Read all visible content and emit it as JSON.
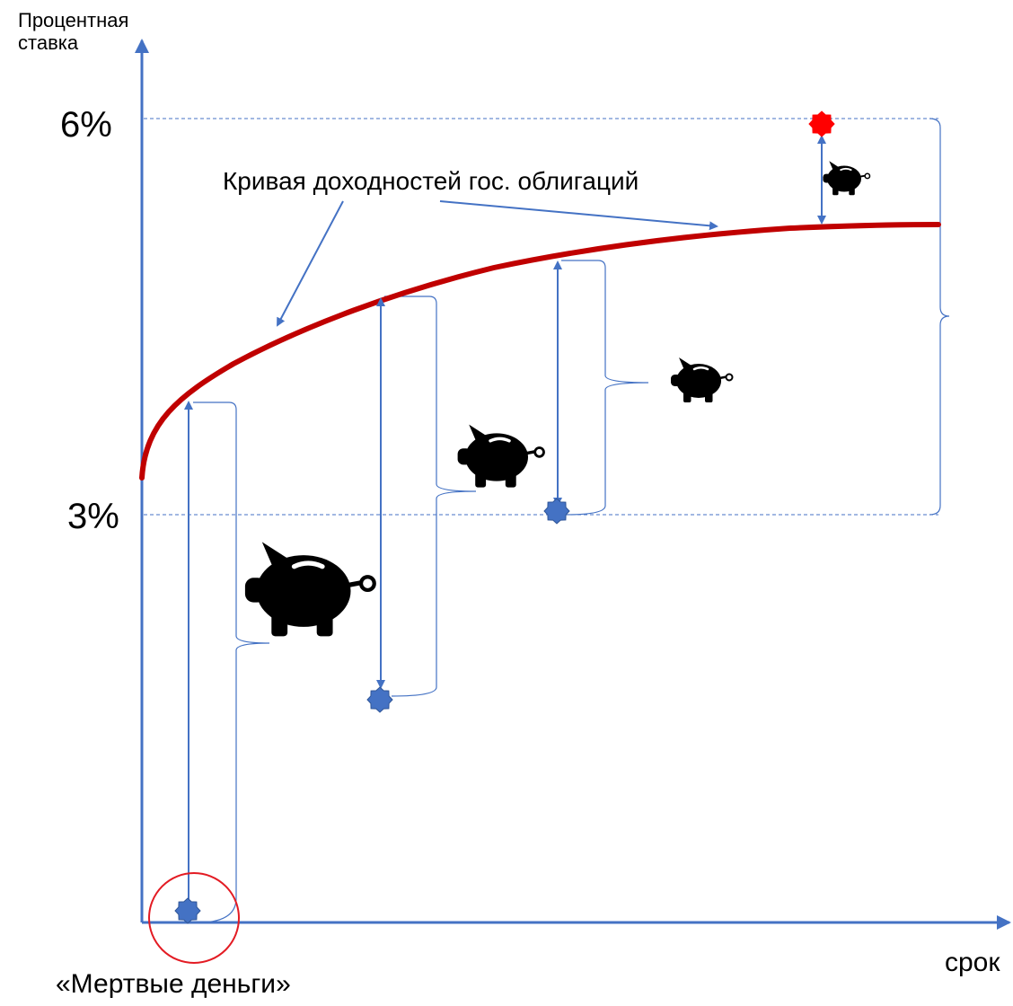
{
  "y_axis": {
    "label_line1": "Процентная",
    "label_line2": "ставка"
  },
  "x_axis": {
    "label": "срок"
  },
  "ticks": {
    "six": "6%",
    "three": "3%"
  },
  "curve": {
    "label": "Кривая доходностей гос. облигаций",
    "color": "#c00000"
  },
  "annotation": {
    "dead_money": "«Мертвые деньги»",
    "circle_color": "#e31b23"
  },
  "colors": {
    "axis": "#4472c4",
    "star_blue": "#4472c4",
    "star_red": "#ff0000",
    "bracket": "#4472c4",
    "pig": "#000000"
  },
  "icons": {
    "pig": "piggy-bank-icon",
    "star": "star-icon"
  }
}
